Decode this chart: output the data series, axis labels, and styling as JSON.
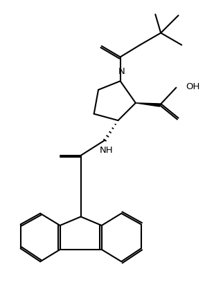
{
  "bg": "#ffffff",
  "lc": "#000000",
  "lw": 1.5,
  "fs": 8.5,
  "figsize": [
    3.22,
    4.18
  ],
  "dpi": 100,
  "xlim": [
    0,
    100
  ],
  "ylim": [
    -20,
    108
  ]
}
